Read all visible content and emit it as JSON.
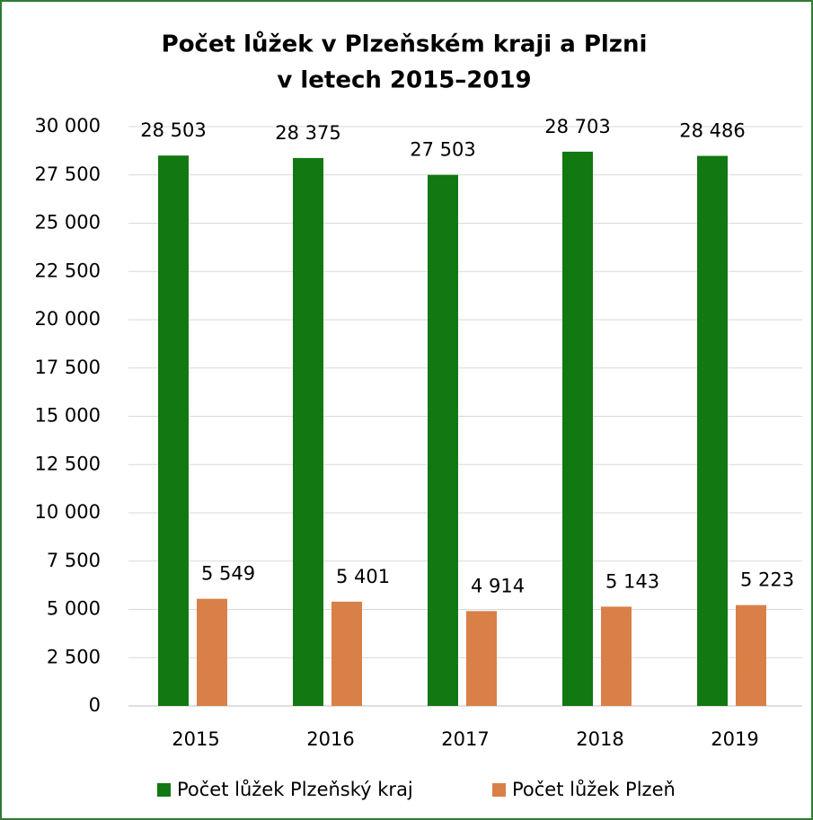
{
  "chart_data": {
    "type": "bar",
    "title": [
      "Počet lůžek v Plzeňském kraji a Plzni",
      "v letech 2015–2019"
    ],
    "categories": [
      "2015",
      "2016",
      "2017",
      "2018",
      "2019"
    ],
    "series": [
      {
        "name": "Počet lůžek Plzeňský kraj",
        "color": "#127812",
        "values": [
          28503,
          28375,
          27503,
          28703,
          28486
        ],
        "value_labels": [
          "28 503",
          "28 375",
          "27 503",
          "28 703",
          "28 486"
        ]
      },
      {
        "name": "Počet lůžek Plzeň",
        "color": "#d98048",
        "values": [
          5549,
          5401,
          4914,
          5143,
          5223
        ],
        "value_labels": [
          "5 549",
          "5 401",
          "4 914",
          "5 143",
          "5 223"
        ]
      }
    ],
    "ylim": [
      0,
      30000
    ],
    "yticks": [
      {
        "value": 0,
        "label": "0"
      },
      {
        "value": 2500,
        "label": "2 500"
      },
      {
        "value": 5000,
        "label": "5 000"
      },
      {
        "value": 7500,
        "label": "7 500"
      },
      {
        "value": 10000,
        "label": "10 000"
      },
      {
        "value": 12500,
        "label": "12 500"
      },
      {
        "value": 15000,
        "label": "15 000"
      },
      {
        "value": 17500,
        "label": "17 500"
      },
      {
        "value": 20000,
        "label": "20 000"
      },
      {
        "value": 22500,
        "label": "22 500"
      },
      {
        "value": 25000,
        "label": "25 000"
      },
      {
        "value": 27500,
        "label": "27 500"
      },
      {
        "value": 30000,
        "label": "30 000"
      }
    ],
    "grid": true,
    "legend": "bottom"
  }
}
